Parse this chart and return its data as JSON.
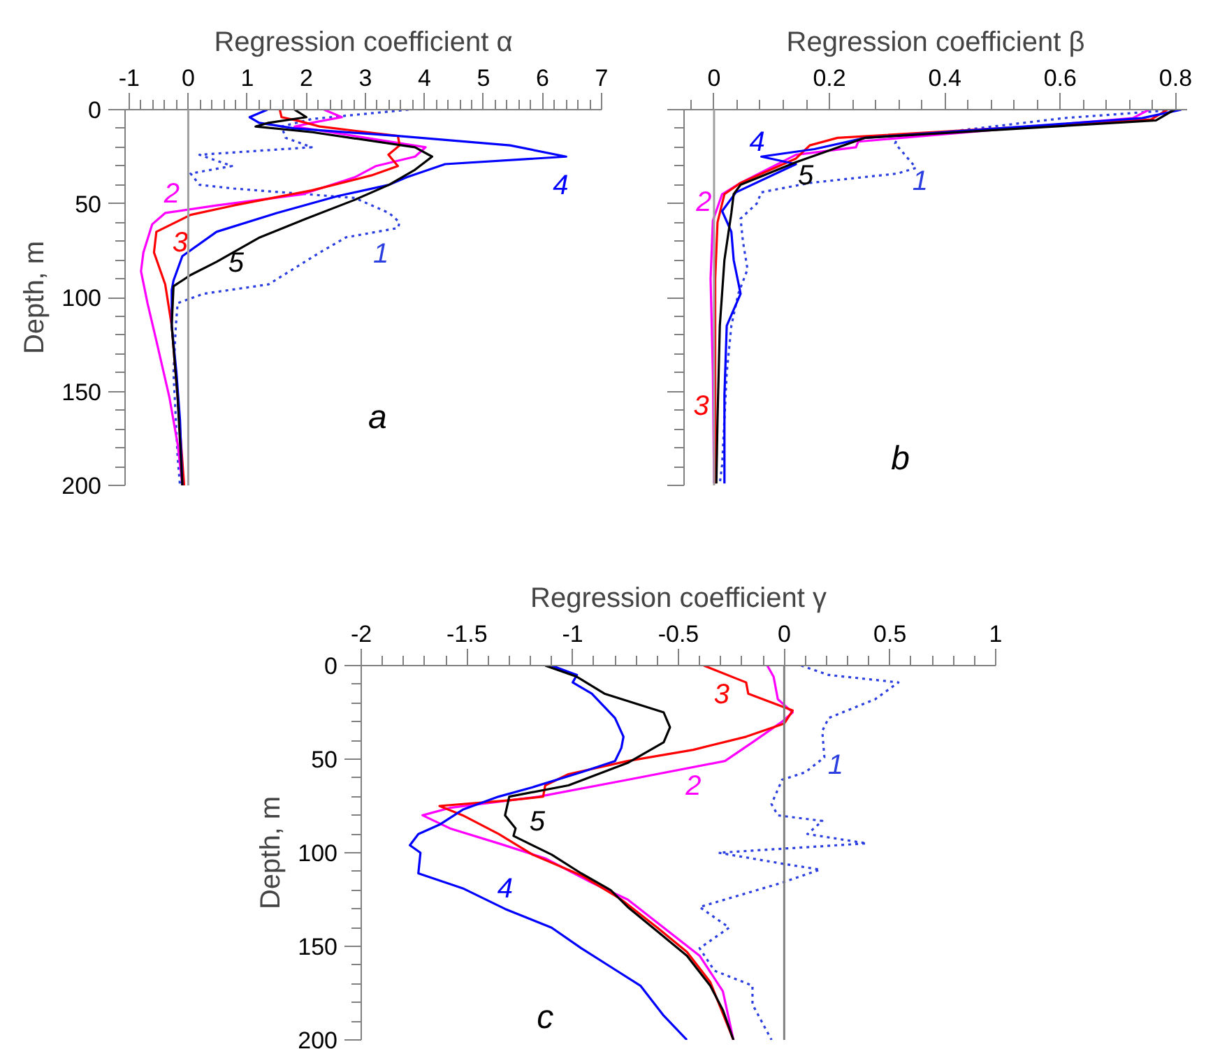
{
  "chart_data": [
    {
      "type": "line",
      "xlabel": "Regression coefficient α",
      "ylabel": "Depth, m",
      "xlim": [
        -1.07,
        7
      ],
      "ylim": [
        200,
        0
      ],
      "xticks": [
        -1,
        {
          "value": -0.8,
          "label": null
        },
        {
          "value": -0.6,
          "label": null
        },
        {
          "value": -0.4,
          "label": null
        },
        {
          "value": -0.2,
          "label": null
        },
        0,
        {
          "value": 0.2,
          "label": null
        },
        {
          "value": 0.4,
          "label": null
        },
        {
          "value": 0.6,
          "label": null
        },
        {
          "value": 0.8,
          "label": null
        },
        1,
        {
          "value": 1.2,
          "label": null
        },
        {
          "value": 1.4,
          "label": null
        },
        {
          "value": 1.6,
          "label": null
        },
        {
          "value": 1.8,
          "label": null
        },
        2,
        {
          "value": 2.2,
          "label": null
        },
        {
          "value": 2.4,
          "label": null
        },
        {
          "value": 2.6,
          "label": null
        },
        {
          "value": 2.8,
          "label": null
        },
        3,
        {
          "value": 3.2,
          "label": null
        },
        {
          "value": 3.4,
          "label": null
        },
        {
          "value": 3.6,
          "label": null
        },
        {
          "value": 3.8,
          "label": null
        },
        4,
        {
          "value": 4.2,
          "label": null
        },
        {
          "value": 4.4,
          "label": null
        },
        {
          "value": 4.6,
          "label": null
        },
        {
          "value": 4.8,
          "label": null
        },
        5,
        {
          "value": 5.2,
          "label": null
        },
        {
          "value": 5.4,
          "label": null
        },
        {
          "value": 5.6,
          "label": null
        },
        {
          "value": 5.8,
          "label": null
        },
        6,
        {
          "value": 6.2,
          "label": null
        },
        {
          "value": 6.4,
          "label": null
        },
        {
          "value": 6.6,
          "label": null
        },
        {
          "value": 6.8,
          "label": null
        },
        7
      ],
      "yticks": [
        0,
        {
          "value": 10,
          "label": null
        },
        {
          "value": 20,
          "label": null
        },
        {
          "value": 30,
          "label": null
        },
        {
          "value": 40,
          "label": null
        },
        50,
        {
          "value": 60,
          "label": null
        },
        {
          "value": 70,
          "label": null
        },
        {
          "value": 80,
          "label": null
        },
        {
          "value": 90,
          "label": null
        },
        100,
        {
          "value": 110,
          "label": null
        },
        {
          "value": 120,
          "label": null
        },
        {
          "value": 130,
          "label": null
        },
        {
          "value": 140,
          "label": null
        },
        150,
        {
          "value": 160,
          "label": null
        },
        {
          "value": 170,
          "label": null
        },
        {
          "value": 180,
          "label": null
        },
        {
          "value": 190,
          "label": null
        },
        200
      ],
      "line_style": "solid",
      "grid": false,
      "legend": false,
      "ref_lines": [
        {
          "axis": "x",
          "value": 0,
          "color": "#a0a0a0"
        }
      ],
      "series": [
        {
          "name": "1",
          "color": "#2b3fe0",
          "line_style": "dotted",
          "x": [
            3.73,
            2.09,
            1.58,
            1.65,
            2.09,
            0.19,
            0.74,
            0.04,
            0.19,
            0.77,
            2.82,
            3.4,
            3.58,
            3.55,
            2.67,
            2.23,
            1.36,
            0.26,
            -0.18,
            -0.21,
            -0.25,
            -0.21,
            -0.18,
            -0.14
          ],
          "values": [
            0,
            5,
            9,
            15,
            20,
            24,
            30,
            34,
            40,
            42,
            47,
            55,
            60,
            63,
            68,
            76,
            93,
            98,
            103,
            115,
            140,
            165,
            185,
            200
          ]
        },
        {
          "name": "2",
          "color": "#ff00ff",
          "x": [
            2.3,
            2.6,
            2.09,
            1.8,
            4.02,
            3.84,
            3.18,
            2.82,
            1.94,
            0.48,
            -0.39,
            -0.61,
            -0.76,
            -0.8,
            -0.69,
            -0.54,
            -0.32,
            -0.18,
            -0.1
          ],
          "values": [
            0,
            4,
            7,
            9,
            20,
            25,
            30,
            36,
            45,
            51,
            55,
            61,
            76,
            86,
            103,
            123,
            153,
            178,
            200
          ]
        },
        {
          "name": "3",
          "color": "#ff0000",
          "x": [
            1.55,
            1.58,
            1.87,
            2.23,
            3.55,
            3.58,
            3.39,
            3.55,
            3.1,
            2.09,
            0.77,
            0.04,
            -0.54,
            -0.58,
            -0.39,
            -0.28,
            -0.18,
            -0.07
          ],
          "values": [
            0,
            4,
            6,
            9,
            14,
            19,
            24,
            30,
            35,
            43,
            51,
            56,
            65,
            76,
            93,
            115,
            153,
            200
          ]
        },
        {
          "name": "4",
          "color": "#0000ff",
          "x": [
            1.34,
            1.04,
            1.2,
            1.8,
            3.55,
            5.45,
            6.4,
            4.35,
            3.7,
            3.4,
            2.53,
            1.5,
            0.48,
            -0.1,
            -0.25,
            -0.28,
            -0.28,
            -0.2,
            -0.14,
            -0.1
          ],
          "values": [
            0,
            4,
            7,
            10,
            14,
            19,
            25,
            29,
            36,
            40,
            46,
            55,
            65,
            78,
            91,
            96,
            115,
            140,
            165,
            200
          ]
        },
        {
          "name": "5",
          "color": "#000000",
          "x": [
            1.8,
            2.0,
            1.36,
            1.14,
            2.1,
            3.84,
            4.13,
            3.84,
            3.4,
            2.82,
            2.0,
            1.21,
            0.48,
            0.04,
            -0.25,
            -0.28,
            -0.18,
            -0.1
          ],
          "values": [
            0,
            4,
            7,
            9,
            12,
            20,
            25,
            32,
            40,
            48,
            58,
            68,
            81,
            88,
            94,
            115,
            153,
            200
          ]
        }
      ],
      "annotations": [
        "a"
      ]
    },
    {
      "type": "line",
      "xlabel": "Regression coefficient β",
      "xlim": [
        -0.052,
        0.82
      ],
      "ylim": [
        200,
        0
      ],
      "tick_labels": "x",
      "xticks": [
        {
          "value": -0.04,
          "label": null
        },
        0,
        {
          "value": 0.04,
          "label": null
        },
        {
          "value": 0.08,
          "label": null
        },
        {
          "value": 0.12,
          "label": null
        },
        {
          "value": 0.16,
          "label": null
        },
        0.2,
        {
          "value": 0.24,
          "label": null
        },
        {
          "value": 0.28,
          "label": null
        },
        {
          "value": 0.32,
          "label": null
        },
        {
          "value": 0.36,
          "label": null
        },
        0.4,
        {
          "value": 0.44,
          "label": null
        },
        {
          "value": 0.48,
          "label": null
        },
        {
          "value": 0.52,
          "label": null
        },
        {
          "value": 0.56,
          "label": null
        },
        0.6,
        {
          "value": 0.64,
          "label": null
        },
        {
          "value": 0.68,
          "label": null
        },
        {
          "value": 0.72,
          "label": null
        },
        {
          "value": 0.76,
          "label": null
        },
        0.8
      ],
      "yticks": [
        0,
        {
          "value": 10,
          "label": null
        },
        {
          "value": 20,
          "label": null
        },
        {
          "value": 30,
          "label": null
        },
        {
          "value": 40,
          "label": null
        },
        50,
        {
          "value": 60,
          "label": null
        },
        {
          "value": 70,
          "label": null
        },
        {
          "value": 80,
          "label": null
        },
        {
          "value": 90,
          "label": null
        },
        100,
        {
          "value": 110,
          "label": null
        },
        {
          "value": 120,
          "label": null
        },
        {
          "value": 130,
          "label": null
        },
        {
          "value": 140,
          "label": null
        },
        150,
        {
          "value": 160,
          "label": null
        },
        {
          "value": 170,
          "label": null
        },
        {
          "value": 180,
          "label": null
        },
        {
          "value": 190,
          "label": null
        },
        200
      ],
      "line_style": "solid",
      "grid": false,
      "legend": false,
      "ref_lines": [
        {
          "axis": "x",
          "value": 0,
          "color": "#a0a0a0"
        }
      ],
      "series": [
        {
          "name": "1",
          "color": "#2b3fe0",
          "line_style": "dotted",
          "x": [
            0.806,
            0.606,
            0.318,
            0.314,
            0.35,
            0.318,
            0.166,
            0.082,
            0.074,
            0.046,
            0.05,
            0.058,
            0.042,
            0.03,
            0.022,
            0.018,
            0.014,
            0.01
          ],
          "values": [
            0,
            4.5,
            15,
            18,
            31,
            34,
            39,
            44,
            50,
            58,
            70,
            85,
            98,
            115,
            140,
            165,
            189,
            199
          ]
        },
        {
          "name": "2",
          "color": "#ff00ff",
          "x": [
            0.754,
            0.726,
            0.25,
            0.246,
            0.142,
            0.046,
            0.014,
            -0.002,
            -0.006,
            -0.002,
            0
          ],
          "values": [
            0,
            4.5,
            17,
            20,
            24,
            39,
            45,
            59,
            90,
            140,
            199
          ]
        },
        {
          "name": "3",
          "color": "#ff0000",
          "x": [
            0.786,
            0.758,
            0.214,
            0.166,
            0.142,
            0.046,
            0.018,
            0.006,
            0.002,
            0.002,
            0.002
          ],
          "values": [
            0,
            5.2,
            15,
            19,
            26,
            39,
            45,
            60,
            90,
            140,
            199
          ]
        },
        {
          "name": "4",
          "color": "#0000ff",
          "x": [
            0.81,
            0.742,
            0.262,
            0.174,
            0.082,
            0.142,
            0.038,
            0.014,
            0.03,
            0.034,
            0.046,
            0.022,
            0.018,
            0.018
          ],
          "values": [
            0,
            4.5,
            15,
            21,
            25,
            29,
            44,
            54,
            65,
            80,
            98,
            115,
            152,
            199
          ]
        },
        {
          "name": "5",
          "color": "#000000",
          "x": [
            0.798,
            0.766,
            0.262,
            0.142,
            0.046,
            0.034,
            0.03,
            0.018,
            0.01,
            0.006,
            0.004
          ],
          "values": [
            0,
            5.7,
            15,
            28,
            40,
            45,
            55,
            80,
            115,
            165,
            199
          ]
        }
      ],
      "annotations": [
        "b"
      ]
    },
    {
      "type": "line",
      "xlabel": "Regression coefficient γ",
      "ylabel": "Depth, m",
      "xlim": [
        -2,
        1
      ],
      "ylim": [
        200,
        0
      ],
      "xticks": [
        -2,
        {
          "value": -1.9,
          "label": null
        },
        {
          "value": -1.8,
          "label": null
        },
        {
          "value": -1.7,
          "label": null
        },
        {
          "value": -1.6,
          "label": null
        },
        -1.5,
        {
          "value": -1.4,
          "label": null
        },
        {
          "value": -1.3,
          "label": null
        },
        {
          "value": -1.2,
          "label": null
        },
        {
          "value": -1.1,
          "label": null
        },
        -1,
        {
          "value": -0.9,
          "label": null
        },
        {
          "value": -0.8,
          "label": null
        },
        {
          "value": -0.7,
          "label": null
        },
        {
          "value": -0.6,
          "label": null
        },
        -0.5,
        {
          "value": -0.4,
          "label": null
        },
        {
          "value": -0.3,
          "label": null
        },
        {
          "value": -0.2,
          "label": null
        },
        {
          "value": -0.1,
          "label": null
        },
        0,
        {
          "value": 0.1,
          "label": null
        },
        {
          "value": 0.2,
          "label": null
        },
        {
          "value": 0.3,
          "label": null
        },
        {
          "value": 0.4,
          "label": null
        },
        0.5,
        {
          "value": 0.6,
          "label": null
        },
        {
          "value": 0.7,
          "label": null
        },
        {
          "value": 0.8,
          "label": null
        },
        {
          "value": 0.9,
          "label": null
        },
        1
      ],
      "yticks": [
        0,
        {
          "value": 10,
          "label": null
        },
        {
          "value": 20,
          "label": null
        },
        {
          "value": 30,
          "label": null
        },
        {
          "value": 40,
          "label": null
        },
        50,
        {
          "value": 60,
          "label": null
        },
        {
          "value": 70,
          "label": null
        },
        {
          "value": 80,
          "label": null
        },
        {
          "value": 90,
          "label": null
        },
        100,
        {
          "value": 110,
          "label": null
        },
        {
          "value": 120,
          "label": null
        },
        {
          "value": 130,
          "label": null
        },
        {
          "value": 140,
          "label": null
        },
        150,
        {
          "value": 160,
          "label": null
        },
        {
          "value": 170,
          "label": null
        },
        {
          "value": 180,
          "label": null
        },
        {
          "value": 190,
          "label": null
        },
        200
      ],
      "line_style": "solid",
      "grid": false,
      "legend": false,
      "ref_lines": [
        {
          "axis": "x",
          "value": 0,
          "color": "#808080"
        }
      ],
      "series": [
        {
          "name": "1",
          "color": "#2b3fe0",
          "line_style": "dotted",
          "x": [
            0.08,
            0.21,
            0.54,
            0.43,
            0.21,
            0.18,
            0.19,
            0.1,
            -0.01,
            -0.06,
            -0.03,
            0.18,
            0.11,
            0.39,
            -0.31,
            0.0,
            0.17,
            -0.01,
            -0.4,
            -0.26,
            -0.4,
            -0.33,
            -0.15,
            -0.15,
            -0.06
          ],
          "values": [
            0,
            5,
            9,
            18,
            28,
            35,
            49,
            57,
            61,
            74,
            80,
            83,
            90,
            95,
            100,
            106,
            109,
            116,
            129,
            140,
            151,
            163,
            171,
            181,
            200
          ]
        },
        {
          "name": "2",
          "color": "#ff00ff",
          "x": [
            -0.08,
            -0.05,
            -0.03,
            0.04,
            -0.01,
            -0.15,
            -0.28,
            -0.74,
            -1.16,
            -1.58,
            -1.71,
            -1.58,
            -1.35,
            -1.13,
            -0.91,
            -0.74,
            -0.57,
            -0.4,
            -0.29,
            -0.24
          ],
          "values": [
            0,
            6,
            18,
            25,
            30,
            41,
            51,
            61,
            70,
            76,
            80,
            87,
            95,
            103,
            116,
            125,
            140,
            155,
            174,
            200
          ]
        },
        {
          "name": "3",
          "color": "#ff0000",
          "x": [
            -0.38,
            -0.18,
            -0.17,
            0.04,
            0,
            -0.18,
            -0.43,
            -0.74,
            -1.02,
            -1.13,
            -1.14,
            -1.3,
            -1.63,
            -1.52,
            -1.35,
            -1.19,
            -0.96,
            -0.77,
            -0.6,
            -0.46,
            -0.35,
            -0.24
          ],
          "values": [
            0,
            9,
            15,
            24,
            31,
            38,
            45,
            51,
            58,
            64,
            70,
            72,
            75,
            80,
            90,
            101,
            112,
            125,
            140,
            153,
            169,
            200
          ]
        },
        {
          "name": "4",
          "color": "#0000ff",
          "x": [
            -1.1,
            -0.98,
            -1.0,
            -0.91,
            -0.8,
            -0.76,
            -0.77,
            -0.8,
            -0.96,
            -1.19,
            -1.35,
            -1.52,
            -1.63,
            -1.73,
            -1.77,
            -1.72,
            -1.73,
            -1.52,
            -1.32,
            -1.1,
            -0.96,
            -0.82,
            -0.68,
            -0.57,
            -0.46
          ],
          "values": [
            0,
            5,
            9,
            15,
            28,
            38,
            44,
            51,
            57,
            65,
            70,
            77,
            85,
            90,
            96,
            100,
            111,
            119,
            130,
            140,
            151,
            161,
            171,
            187,
            200
          ]
        },
        {
          "name": "5",
          "color": "#000000",
          "x": [
            -1.13,
            -0.98,
            -0.85,
            -0.57,
            -0.54,
            -0.57,
            -0.74,
            -1.02,
            -1.3,
            -1.32,
            -1.27,
            -1.28,
            -1.1,
            -0.96,
            -0.82,
            -0.74,
            -0.6,
            -0.46,
            -0.35,
            -0.29,
            -0.24
          ],
          "values": [
            0,
            6,
            15,
            25,
            33,
            41,
            52,
            64,
            70,
            80,
            87,
            91,
            101,
            111,
            120,
            129,
            142,
            155,
            171,
            184,
            200
          ]
        }
      ],
      "annotations": [
        "c"
      ]
    }
  ]
}
